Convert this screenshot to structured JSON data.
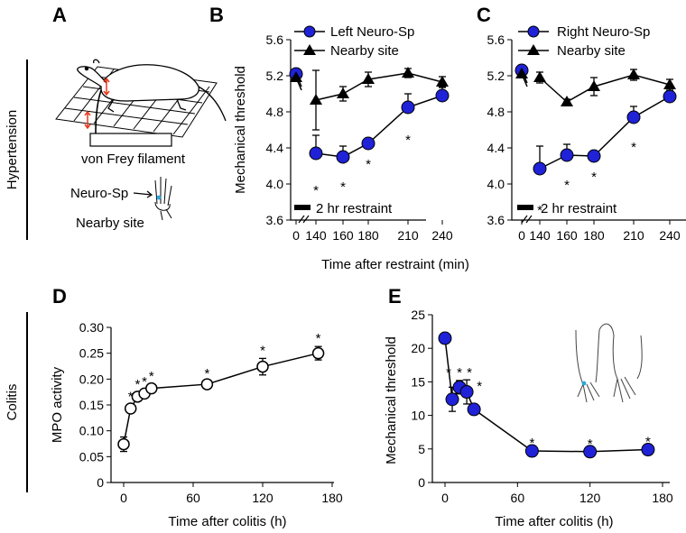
{
  "panel_labels": {
    "A": "A",
    "B": "B",
    "C": "C",
    "D": "D",
    "E": "E"
  },
  "row_labels": {
    "hypertension": "Hypertension",
    "colitis": "Colitis"
  },
  "panel_a": {
    "filament_label": "von Frey filament",
    "neuro_sp_label": "Neuro-Sp",
    "nearby_label": "Nearby site"
  },
  "shared_xlabel": "Time after restraint (min)",
  "restraint_label": "2 hr restraint",
  "colors": {
    "blue": "#1f22d6",
    "black": "#000000",
    "white": "#ffffff",
    "skin_dot": "#2aa8d8"
  },
  "chart_data": [
    {
      "id": "B",
      "type": "line",
      "ylabel": "Mechanical threshold",
      "ylim": [
        3.6,
        5.6
      ],
      "yticks": [
        "3.6",
        "4.0",
        "4.4",
        "4.8",
        "5.2",
        "5.6"
      ],
      "xticks": [
        "0",
        "140",
        "160",
        "180",
        "210",
        "240"
      ],
      "series": [
        {
          "name": "Left Neuro-Sp",
          "marker": "circle",
          "x": [
            0,
            140,
            160,
            180,
            210,
            240
          ],
          "values": [
            5.22,
            4.34,
            4.3,
            4.45,
            4.85,
            4.98
          ],
          "err": [
            0.0,
            0.2,
            0.12,
            0.0,
            0.15,
            0.1
          ],
          "stars": [
            "",
            "*",
            "*",
            "*",
            "*",
            ""
          ]
        },
        {
          "name": "Nearby site",
          "marker": "triangle",
          "x": [
            0,
            140,
            160,
            180,
            210,
            240
          ],
          "values": [
            5.18,
            4.93,
            5.0,
            5.16,
            5.23,
            5.13
          ],
          "err": [
            0.0,
            0.33,
            0.08,
            0.08,
            0.05,
            0.06
          ]
        }
      ]
    },
    {
      "id": "C",
      "type": "line",
      "ylabel": "",
      "ylim": [
        3.6,
        5.6
      ],
      "yticks": [
        "3.6",
        "4.0",
        "4.4",
        "4.8",
        "5.2",
        "5.6"
      ],
      "xticks": [
        "0",
        "140",
        "160",
        "180",
        "210",
        "240"
      ],
      "series": [
        {
          "name": "Right Neuro-Sp",
          "marker": "circle",
          "x": [
            0,
            140,
            160,
            180,
            210,
            240
          ],
          "values": [
            5.26,
            4.17,
            4.32,
            4.31,
            4.74,
            4.97
          ],
          "err": [
            0.0,
            0.25,
            0.12,
            0.0,
            0.12,
            0.1
          ],
          "stars": [
            "",
            "*",
            "*",
            "*",
            "*",
            ""
          ]
        },
        {
          "name": "Nearby site",
          "marker": "triangle",
          "x": [
            0,
            140,
            160,
            180,
            210,
            240
          ],
          "values": [
            5.22,
            5.18,
            4.91,
            5.08,
            5.21,
            5.1
          ],
          "err": [
            0.0,
            0.06,
            0.03,
            0.1,
            0.06,
            0.06
          ]
        }
      ]
    },
    {
      "id": "D",
      "type": "line",
      "ylabel": "MPO activity",
      "xlabel": "Time after colitis (h)",
      "ylim": [
        0,
        0.3
      ],
      "xlim": [
        -6,
        180
      ],
      "yticks": [
        "0",
        "0.05",
        "0.10",
        "0.15",
        "0.20",
        "0.25",
        "0.30"
      ],
      "xticks": [
        "0",
        "60",
        "120",
        "180"
      ],
      "series": [
        {
          "name": "MPO activity",
          "marker": "open-circle",
          "x": [
            0,
            6,
            12,
            18,
            24,
            72,
            120,
            168
          ],
          "values": [
            0.074,
            0.143,
            0.166,
            0.172,
            0.182,
            0.19,
            0.224,
            0.25
          ],
          "err": [
            0.014,
            0.008,
            0.008,
            0.008,
            0.008,
            0.005,
            0.016,
            0.013
          ],
          "stars": [
            "",
            "*",
            "*",
            "*",
            "*",
            "*",
            "*",
            "*"
          ]
        }
      ]
    },
    {
      "id": "E",
      "type": "line",
      "ylabel": "Mechanical threshold",
      "xlabel": "Time after colitis (h)",
      "ylim": [
        0,
        25
      ],
      "xlim": [
        -6,
        180
      ],
      "yticks": [
        "0",
        "5",
        "10",
        "15",
        "20",
        "25"
      ],
      "xticks": [
        "0",
        "60",
        "120",
        "180"
      ],
      "series": [
        {
          "name": "Mechanical threshold",
          "marker": "circle",
          "x": [
            0,
            6,
            12,
            18,
            24,
            72,
            120,
            168
          ],
          "values": [
            21.5,
            12.4,
            14.2,
            13.5,
            10.9,
            4.7,
            4.6,
            4.9
          ],
          "err": [
            0.0,
            1.8,
            1.0,
            1.8,
            0.0,
            0.0,
            0.0,
            0.0
          ],
          "stars": [
            "",
            "*",
            "*",
            "*",
            "*",
            "*",
            "*",
            "*"
          ]
        }
      ]
    }
  ]
}
